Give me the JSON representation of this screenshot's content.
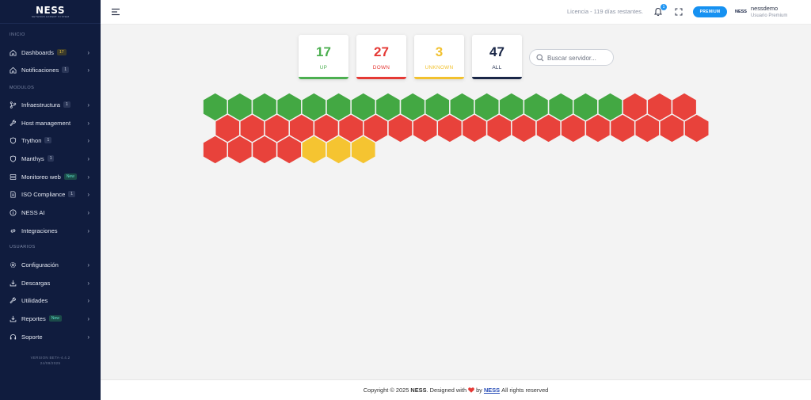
{
  "sidebar": {
    "brand": "NESS",
    "brand_tag": "NETWORK EXPERT SYSTEM",
    "sections": {
      "inicio": "INICIO",
      "modulos": "MODULOS",
      "usuarios": "USUARIOS"
    },
    "items": [
      {
        "label": "Dashboards",
        "badge": "17",
        "icon": "home-icon"
      },
      {
        "label": "Notificaciones",
        "badge": "1",
        "icon": "home-icon"
      },
      {
        "label": "Infraestructura",
        "badge": "1",
        "icon": "branch-icon"
      },
      {
        "label": "Host management",
        "badge": "",
        "icon": "wrench-icon"
      },
      {
        "label": "Trython",
        "badge": "1",
        "icon": "shield-icon"
      },
      {
        "label": "Manthys",
        "badge": "1",
        "icon": "shield-icon"
      },
      {
        "label": "Monitoreo web",
        "badge": "New",
        "icon": "server-icon"
      },
      {
        "label": "ISO Compliance",
        "badge": "1",
        "icon": "document-icon"
      },
      {
        "label": "NESS AI",
        "badge": "",
        "icon": "info-icon"
      },
      {
        "label": "Integraciones",
        "badge": "",
        "icon": "link-icon"
      },
      {
        "label": "Configuración",
        "badge": "",
        "icon": "gear-icon"
      },
      {
        "label": "Descargas",
        "badge": "",
        "icon": "download-icon"
      },
      {
        "label": "Utilidades",
        "badge": "",
        "icon": "wrench-icon"
      },
      {
        "label": "Reportes",
        "badge": "New",
        "icon": "download-icon"
      },
      {
        "label": "Soporte",
        "badge": "",
        "icon": "headset-icon"
      }
    ],
    "version": "VERSION BETA-4.4.2",
    "version_date": "24/09/2025"
  },
  "header": {
    "license": "Licencia - 119 días restantes.",
    "notifications_count": "1",
    "premium_label": "PREMIUM",
    "user_logo": "NESS",
    "user_name": "nessdemo",
    "user_role": "Usuario Premium"
  },
  "stats": [
    {
      "value": "17",
      "label": "UP",
      "color": "#4caf50"
    },
    {
      "value": "27",
      "label": "DOWN",
      "color": "#e53935"
    },
    {
      "value": "3",
      "label": "UNKNOWN",
      "color": "#f2c12e"
    },
    {
      "value": "47",
      "label": "ALL",
      "color": "#1a2747"
    }
  ],
  "search": {
    "placeholder": "Buscar servidor..."
  },
  "status_colors": {
    "up": "#43a843",
    "down": "#e8423b",
    "unknown": "#f5c431"
  },
  "servers": [
    "up",
    "up",
    "up",
    "up",
    "up",
    "up",
    "up",
    "up",
    "up",
    "up",
    "up",
    "up",
    "up",
    "up",
    "up",
    "up",
    "up",
    "down",
    "down",
    "down",
    "down",
    "down",
    "down",
    "down",
    "down",
    "down",
    "down",
    "down",
    "down",
    "down",
    "down",
    "down",
    "down",
    "down",
    "down",
    "down",
    "down",
    "down",
    "down",
    "down",
    "down",
    "down",
    "down",
    "down",
    "unknown",
    "unknown",
    "unknown"
  ],
  "footer": {
    "prefix": "Copyright © 2025",
    "brand": "NESS",
    "middle": ". Designed with",
    "by": "by",
    "link": "NESS",
    "suffix": "All rights reserved"
  }
}
